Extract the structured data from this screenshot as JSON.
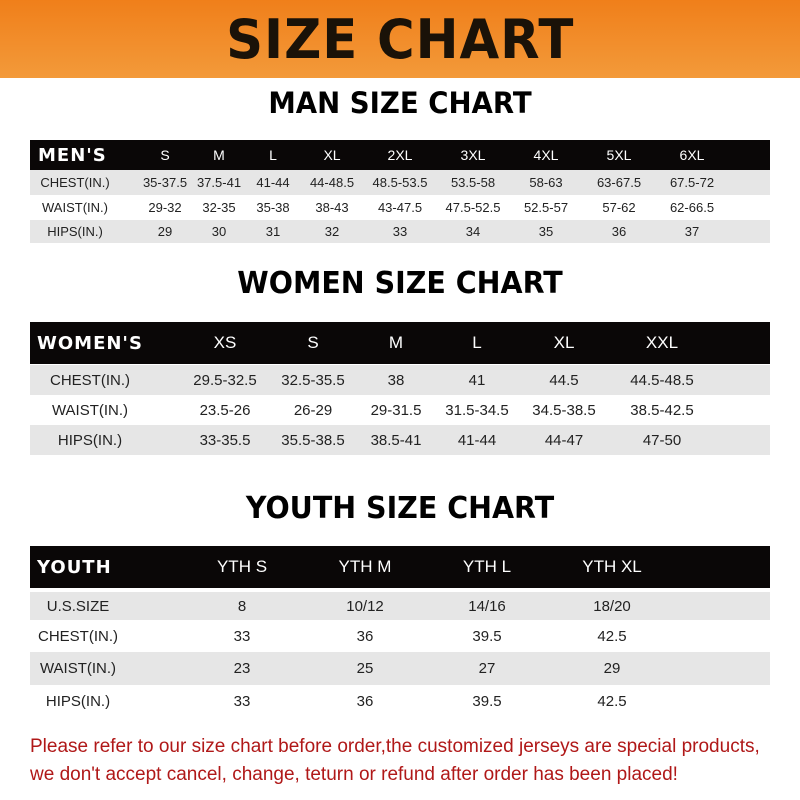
{
  "banner_title": "SIZE CHART",
  "men": {
    "title": "MAN SIZE CHART",
    "header": [
      "MEN'S",
      "S",
      "M",
      "L",
      "XL",
      "2XL",
      "3XL",
      "4XL",
      "5XL",
      "6XL"
    ],
    "rows": [
      [
        "CHEST(IN.)",
        "35-37.5",
        "37.5-41",
        "41-44",
        "44-48.5",
        "48.5-53.5",
        "53.5-58",
        "58-63",
        "63-67.5",
        "67.5-72"
      ],
      [
        "WAIST(IN.)",
        "29-32",
        "32-35",
        "35-38",
        "38-43",
        "43-47.5",
        "47.5-52.5",
        "52.5-57",
        "57-62",
        "62-66.5"
      ],
      [
        "HIPS(IN.)",
        "29",
        "30",
        "31",
        "32",
        "33",
        "34",
        "35",
        "36",
        "37"
      ]
    ]
  },
  "women": {
    "title": "WOMEN SIZE CHART",
    "header": [
      "WOMEN'S",
      "XS",
      "S",
      "M",
      "L",
      "XL",
      "XXL"
    ],
    "rows": [
      [
        "CHEST(IN.)",
        "29.5-32.5",
        "32.5-35.5",
        "38",
        "41",
        "44.5",
        "44.5-48.5"
      ],
      [
        "WAIST(IN.)",
        "23.5-26",
        "26-29",
        "29-31.5",
        "31.5-34.5",
        "34.5-38.5",
        "38.5-42.5"
      ],
      [
        "HIPS(IN.)",
        "33-35.5",
        "35.5-38.5",
        "38.5-41",
        "41-44",
        "44-47",
        "47-50"
      ]
    ]
  },
  "youth": {
    "title": "YOUTH SIZE CHART",
    "header": [
      "YOUTH",
      "YTH S",
      "YTH M",
      "YTH L",
      "YTH XL"
    ],
    "rows": [
      [
        "U.S.SIZE",
        "8",
        "10/12",
        "14/16",
        "18/20"
      ],
      [
        "CHEST(IN.)",
        "33",
        "36",
        "39.5",
        "42.5"
      ],
      [
        "WAIST(IN.)",
        "23",
        "25",
        "27",
        "29"
      ],
      [
        "HIPS(IN.)",
        "33",
        "36",
        "39.5",
        "42.5"
      ]
    ]
  },
  "footer": {
    "line1": "Please refer to our size chart before order,the customized jerseys are special products,",
    "line2": "we don't accept cancel, change, teturn or refund after order has been placed!"
  },
  "colors": {
    "banner": "#f08a24",
    "header_row": "#0a0707",
    "stripe": "#e6e6e6",
    "footer_text": "#b01818"
  }
}
